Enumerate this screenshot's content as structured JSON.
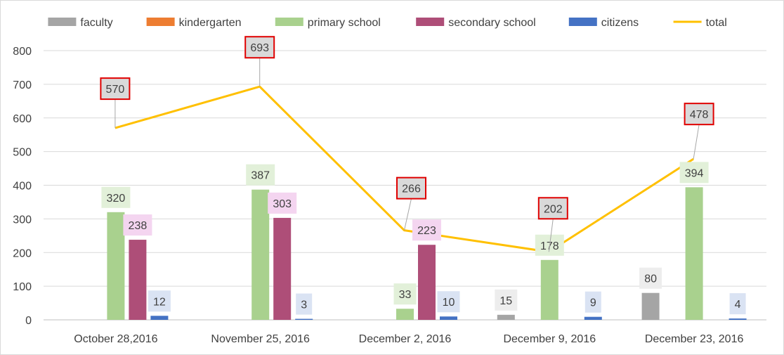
{
  "chart_data": {
    "type": "bar",
    "title": "",
    "xlabel": "",
    "ylabel": "",
    "ylim": [
      0,
      800
    ],
    "yticks": [
      0,
      100,
      200,
      300,
      400,
      500,
      600,
      700,
      800
    ],
    "grid": true,
    "legend_position": "top",
    "categories": [
      "October 28,2016",
      "November 25, 2016",
      "December 2, 2016",
      "December 9, 2016",
      "December 23, 2016"
    ],
    "series": [
      {
        "name": "faculty",
        "type": "bar",
        "color": "#a5a5a5",
        "label_bg": "#ededed",
        "values": [
          null,
          null,
          null,
          15,
          80
        ]
      },
      {
        "name": "kindergarten",
        "type": "bar",
        "color": "#ed7d31",
        "label_bg": "#fbe5d6",
        "values": [
          null,
          null,
          null,
          null,
          null
        ]
      },
      {
        "name": "primary school",
        "type": "bar",
        "color": "#a9d18e",
        "label_bg": "#e2f0d9",
        "values": [
          320,
          387,
          33,
          178,
          394
        ]
      },
      {
        "name": "secondary school",
        "type": "bar",
        "color": "#ae4e78",
        "label_bg": "#f4d5f0",
        "values": [
          238,
          303,
          223,
          null,
          null
        ]
      },
      {
        "name": "citizens",
        "type": "bar",
        "color": "#4472c4",
        "label_bg": "#dae3f3",
        "values": [
          12,
          3,
          10,
          9,
          4
        ]
      },
      {
        "name": "total",
        "type": "line",
        "color": "#ffc000",
        "label_bg": "#d9d9d9",
        "label_border": "#e00000",
        "values": [
          570,
          693,
          266,
          202,
          478
        ]
      }
    ]
  }
}
